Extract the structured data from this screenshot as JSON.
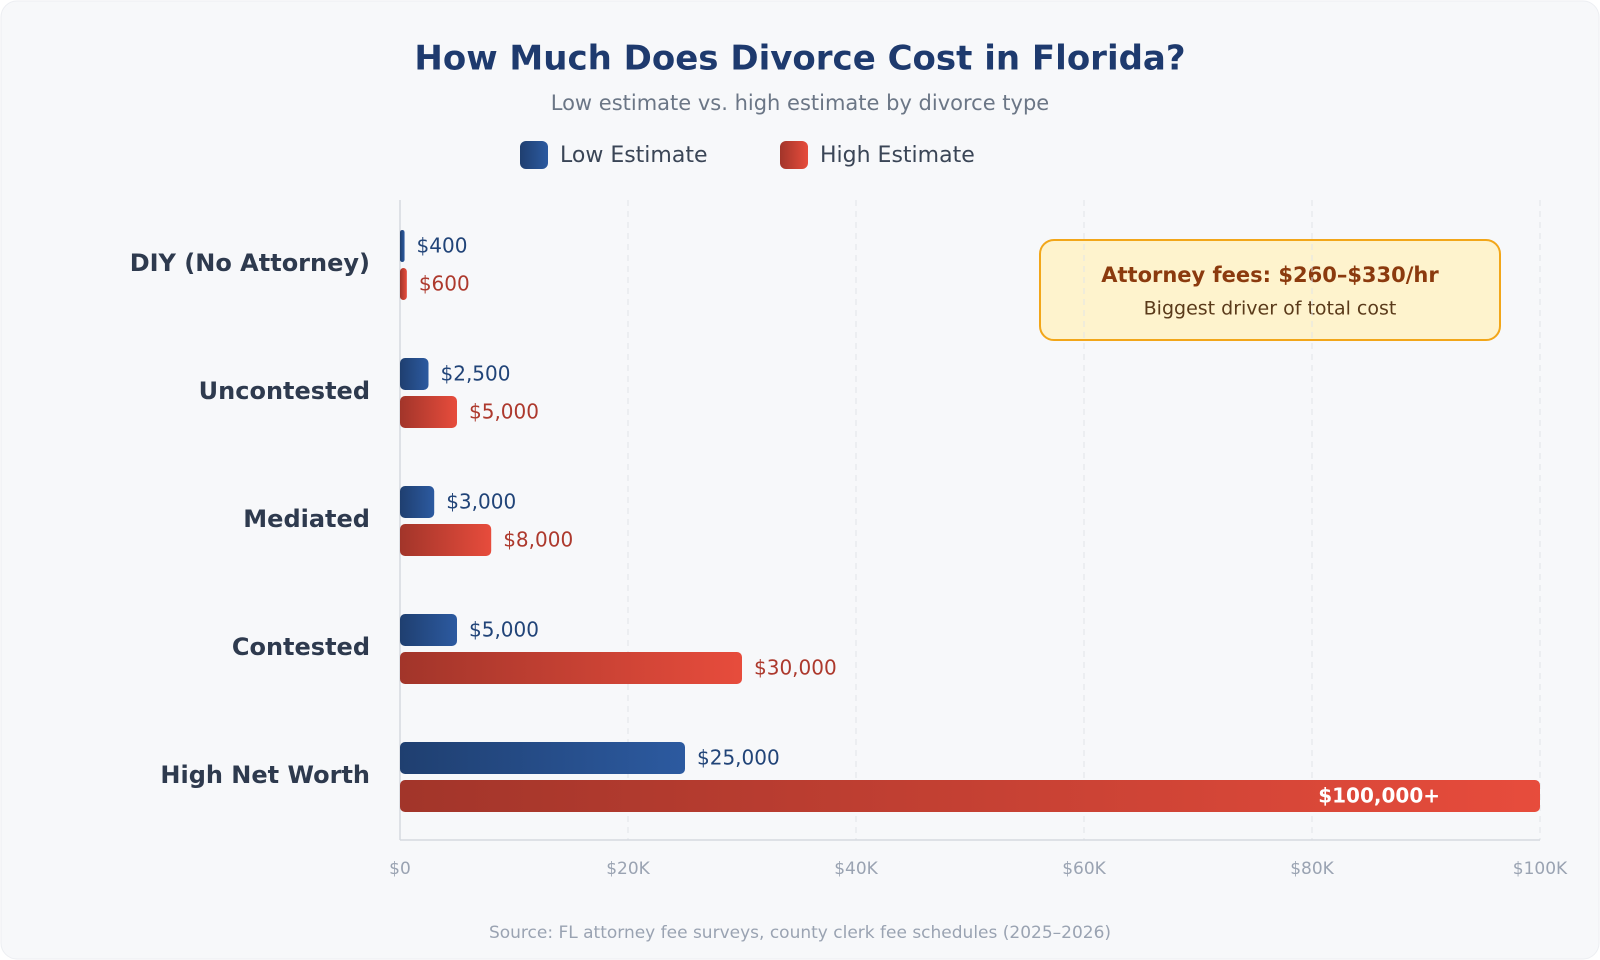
{
  "chart_data": {
    "type": "hbar",
    "title": "How Much Does Divorce Cost in Florida?",
    "subtitle": "Low estimate vs. high estimate by divorce type",
    "categories": [
      "DIY (No Attorney)",
      "Uncontested",
      "Mediated",
      "Contested",
      "High Net Worth"
    ],
    "series": [
      {
        "name": "Low Estimate",
        "color": "#2c5aa0",
        "values": [
          400,
          2500,
          3000,
          5000,
          25000
        ],
        "value_labels": [
          "$400",
          "$2,500",
          "$3,000",
          "$5,000",
          "$25,000"
        ]
      },
      {
        "name": "High Estimate",
        "color": "#e74c3c",
        "values": [
          600,
          5000,
          8000,
          30000,
          100000
        ],
        "value_labels": [
          "$600",
          "$5,000",
          "$8,000",
          "$30,000",
          "$100,000+"
        ]
      }
    ],
    "xlim": [
      0,
      100000
    ],
    "xticks": [
      {
        "value": 0,
        "label": "$0"
      },
      {
        "value": 20000,
        "label": "$20K"
      },
      {
        "value": 40000,
        "label": "$40K"
      },
      {
        "value": 60000,
        "label": "$60K"
      },
      {
        "value": 80000,
        "label": "$80K"
      },
      {
        "value": 100000,
        "label": "$100K"
      }
    ],
    "grid": true,
    "legend": "top",
    "annotation": {
      "title": "Attorney fees: $260–$330/hr",
      "text": "Biggest driver of total cost"
    },
    "source": "Source: FL attorney fee surveys, county clerk fee schedules (2025–2026)"
  }
}
